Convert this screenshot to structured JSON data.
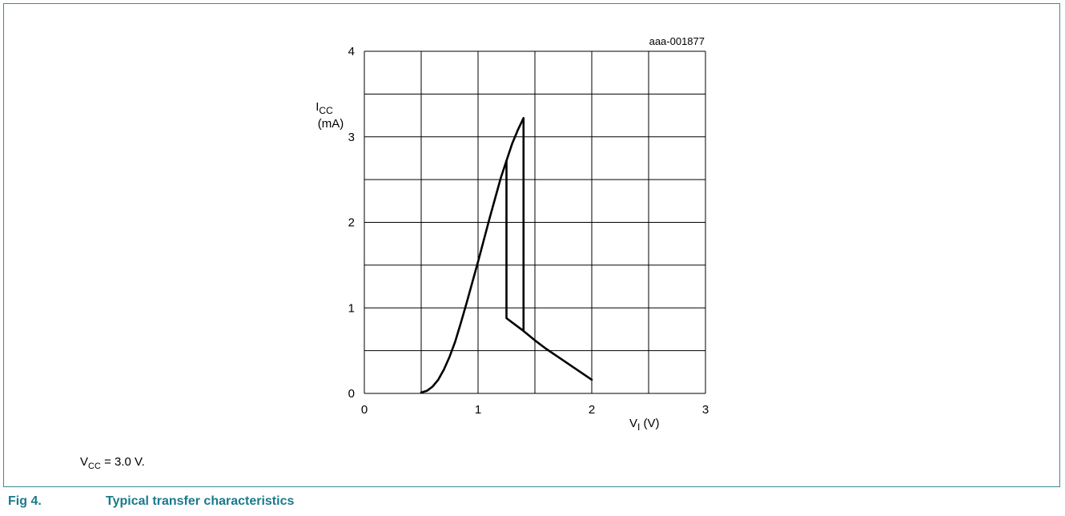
{
  "figure": {
    "id_label": "aaa-001877",
    "number": "Fig 4.",
    "title": "Typical transfer characteristics",
    "note": {
      "symbol": "V",
      "subscript": "CC",
      "rest": " = 3.0 V."
    },
    "line_color": "#000000",
    "caption_color": "#1a7a8c",
    "border_color": "#3c8a96"
  },
  "chart_data": {
    "type": "line",
    "ylabel": {
      "symbol": "I",
      "subscript": "CC",
      "unit": "(mA)"
    },
    "xlabel": {
      "symbol": "V",
      "subscript": "I",
      "unit": " (V)"
    },
    "xlim": [
      0,
      3
    ],
    "ylim": [
      0,
      4
    ],
    "x_ticks": [
      0,
      1,
      2,
      3
    ],
    "y_ticks": [
      0,
      1,
      2,
      3,
      4
    ],
    "grid": true,
    "series": [
      {
        "points": [
          [
            0.5,
            0.01
          ],
          [
            0.55,
            0.03
          ],
          [
            0.6,
            0.08
          ],
          [
            0.65,
            0.16
          ],
          [
            0.7,
            0.28
          ],
          [
            0.75,
            0.43
          ],
          [
            0.8,
            0.61
          ],
          [
            0.85,
            0.83
          ],
          [
            0.9,
            1.06
          ],
          [
            0.95,
            1.3
          ],
          [
            1.0,
            1.54
          ],
          [
            1.05,
            1.79
          ],
          [
            1.1,
            2.04
          ],
          [
            1.15,
            2.28
          ],
          [
            1.2,
            2.52
          ],
          [
            1.25,
            2.72
          ],
          [
            1.3,
            2.92
          ],
          [
            1.35,
            3.08
          ],
          [
            1.4,
            3.22
          ],
          [
            1.4,
            0.73
          ],
          [
            1.5,
            0.62
          ],
          [
            1.6,
            0.52
          ],
          [
            1.7,
            0.43
          ],
          [
            1.8,
            0.34
          ],
          [
            1.9,
            0.25
          ],
          [
            2.0,
            0.16
          ]
        ]
      },
      {
        "points": [
          [
            1.25,
            2.72
          ],
          [
            1.25,
            0.88
          ],
          [
            1.4,
            0.73
          ]
        ]
      }
    ]
  }
}
